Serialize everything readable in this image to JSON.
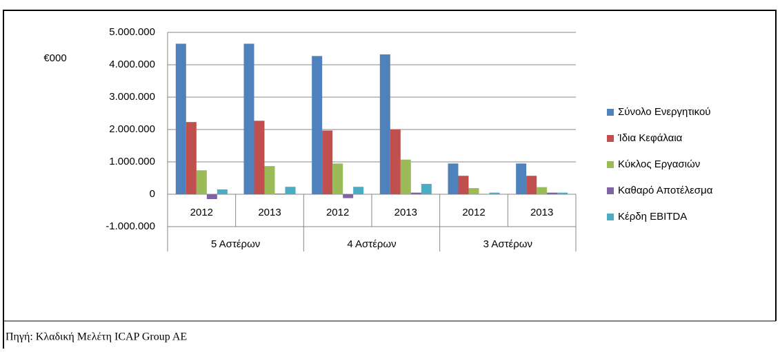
{
  "chart_data": {
    "type": "bar",
    "y_label": "€000",
    "categories": [
      "2012",
      "2013",
      "2012",
      "2013",
      "2012",
      "2013"
    ],
    "groups": [
      "5 Αστέρων",
      "4 Αστέρων",
      "3 Αστέρων"
    ],
    "series": [
      {
        "name": "Σύνολο Ενεργητικού",
        "color": "#4f81bd",
        "values": [
          4650000,
          4650000,
          4270000,
          4320000,
          950000,
          950000
        ]
      },
      {
        "name": "Ίδια Κεφάλαια",
        "color": "#c0504d",
        "values": [
          2230000,
          2270000,
          1970000,
          2000000,
          570000,
          570000
        ]
      },
      {
        "name": "Κύκλος Εργασιών",
        "color": "#9bbb59",
        "values": [
          740000,
          870000,
          950000,
          1070000,
          190000,
          220000
        ]
      },
      {
        "name": "Καθαρό Αποτέλεσμα",
        "color": "#8064a2",
        "values": [
          -150000,
          20000,
          -120000,
          50000,
          10000,
          50000
        ]
      },
      {
        "name": "Κέρδη EBITDA",
        "color": "#4bacc6",
        "values": [
          150000,
          230000,
          230000,
          320000,
          50000,
          50000
        ]
      }
    ],
    "ylim": [
      -1000000,
      5000000
    ],
    "yticks": [
      {
        "value": -1000000,
        "label": "-1.000.000"
      },
      0,
      {
        "value": 1000000,
        "label": "1.000.000"
      },
      {
        "value": 2000000,
        "label": "2.000.000"
      },
      {
        "value": 3000000,
        "label": "3.000.000"
      },
      {
        "value": 4000000,
        "label": "4.000.000"
      },
      {
        "value": 5000000,
        "label": "5.000.000"
      }
    ],
    "grid": true,
    "legend": "right"
  },
  "source": "Πηγή: Κλαδική Μελέτη ICAP Group AE"
}
